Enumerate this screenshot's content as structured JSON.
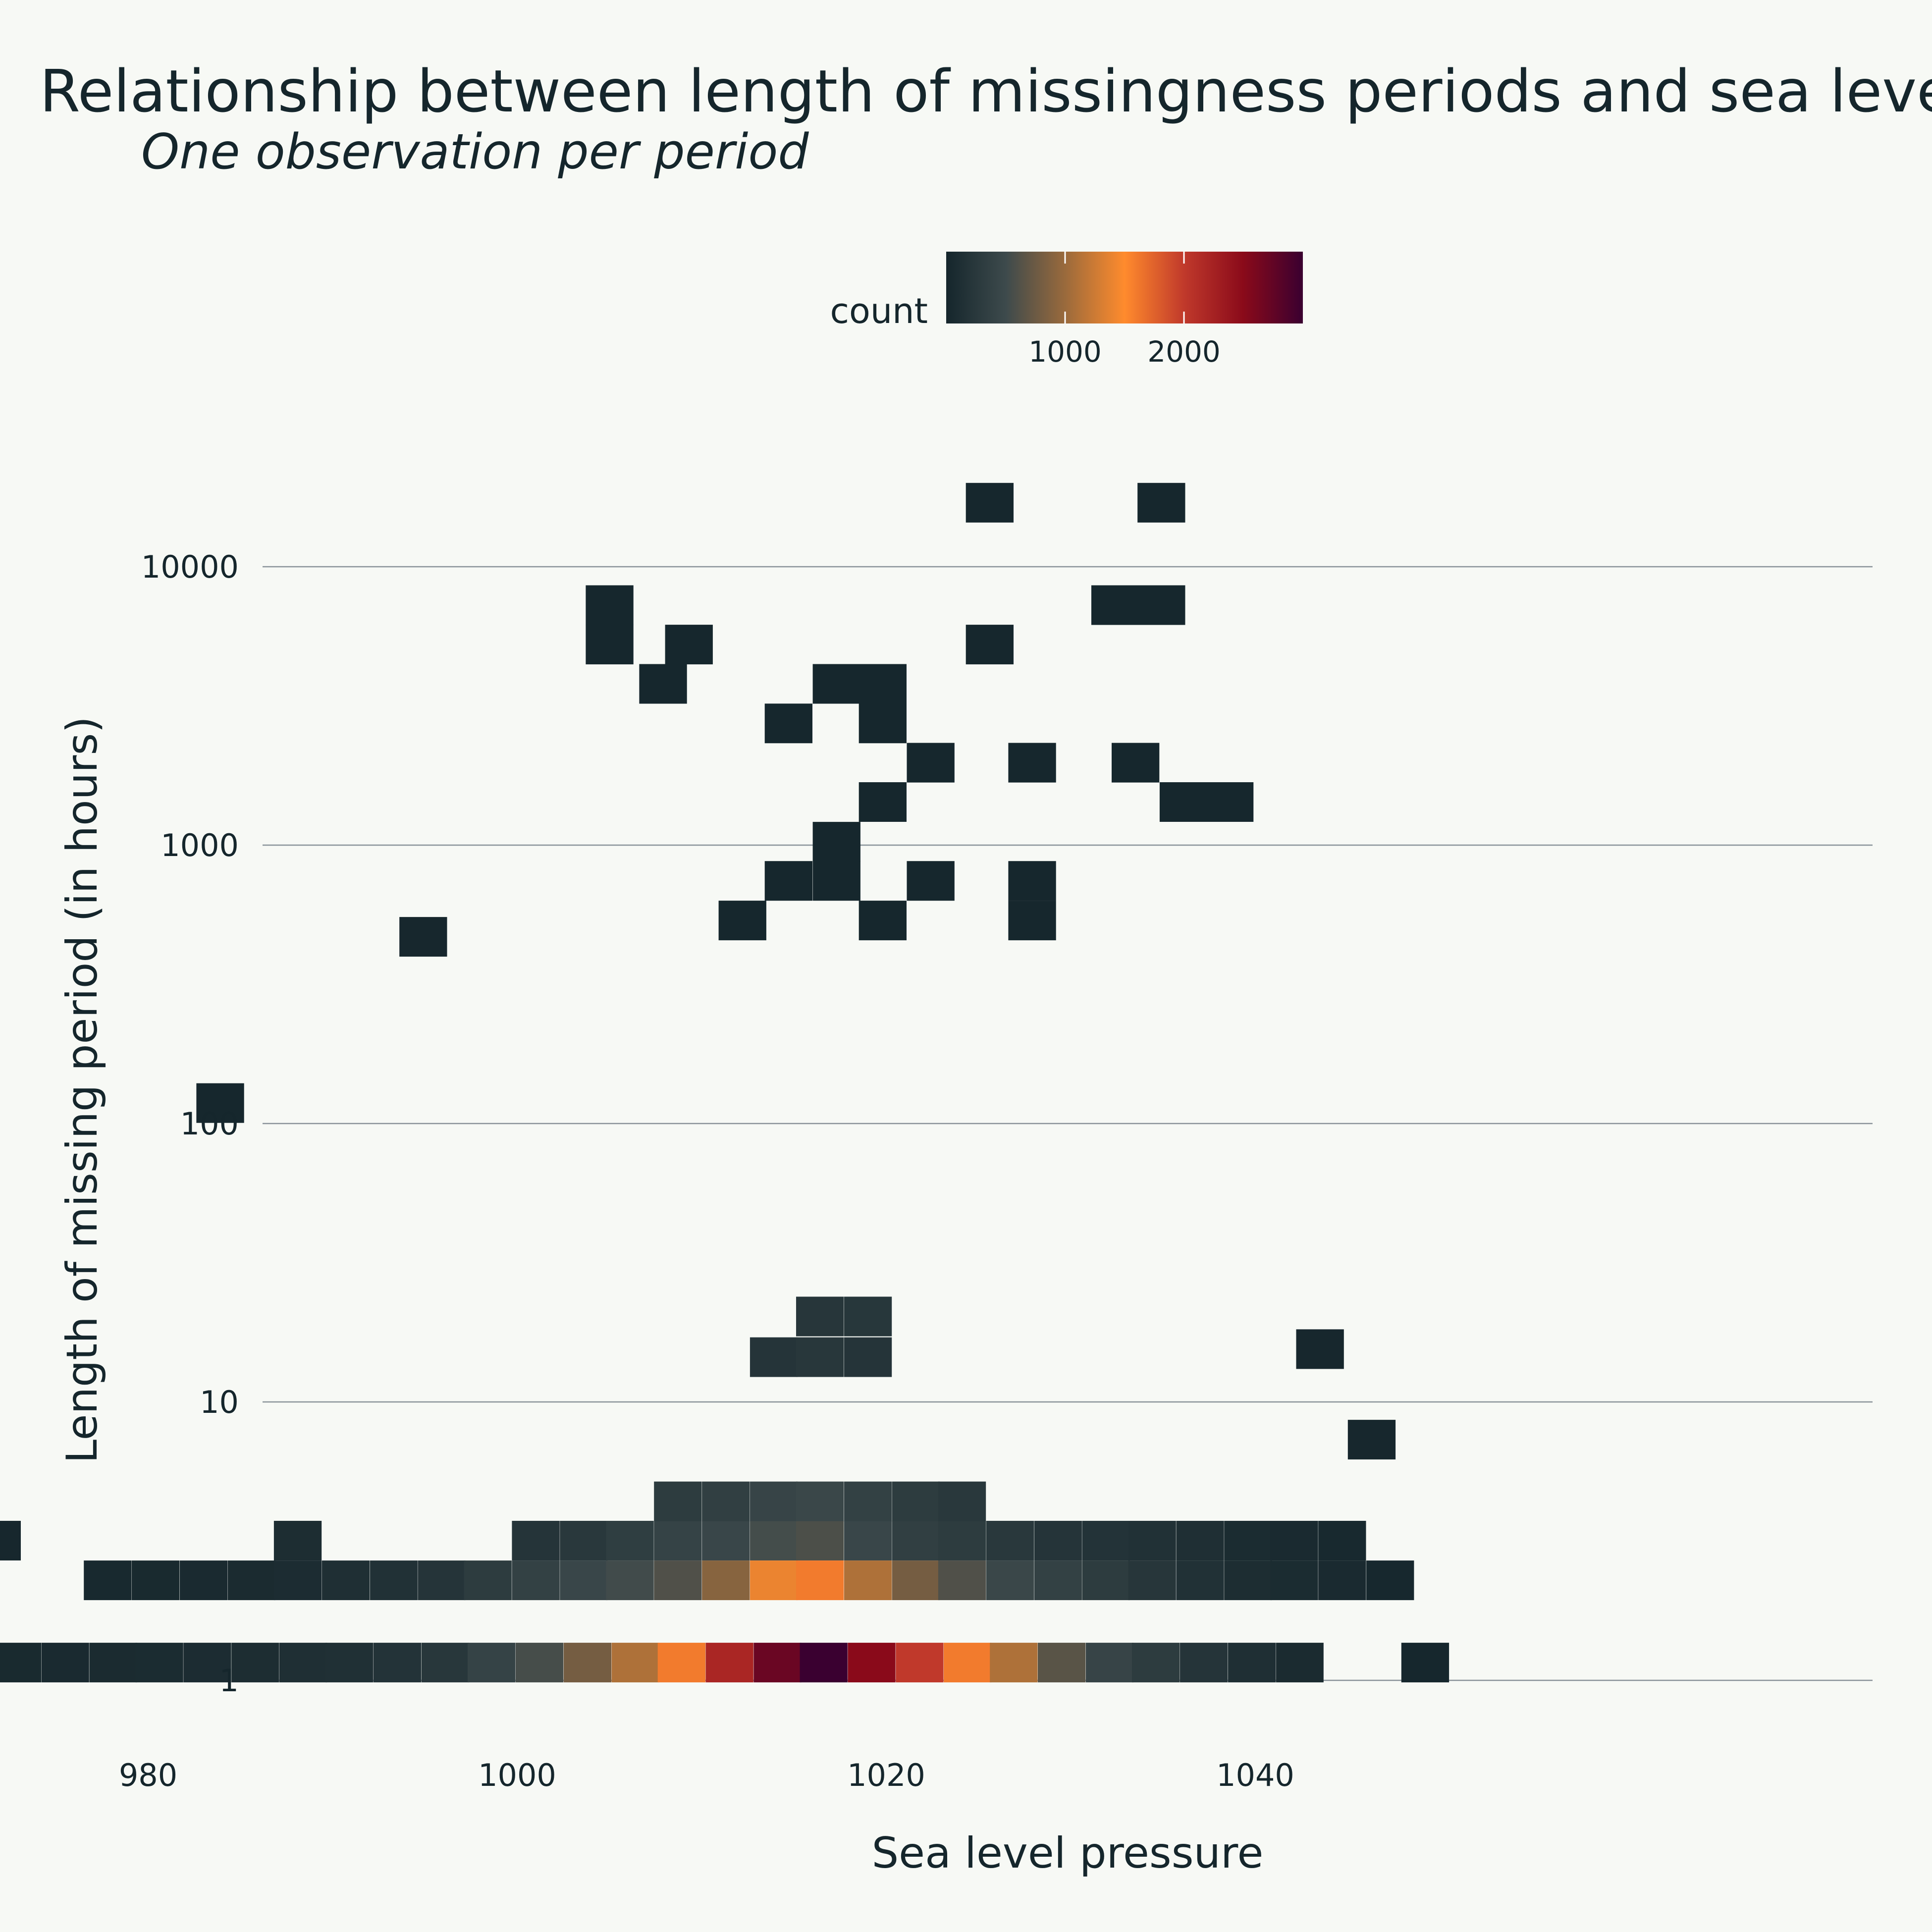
{
  "chart_data": {
    "type": "heatmap",
    "title": "Relationship between length of missingness periods and sea leve",
    "subtitle": "One observation per period",
    "xlabel": "Sea level pressure",
    "ylabel": "Length of missing period (in hours)",
    "xlim": [
      966,
      1054
    ],
    "ylim": [
      0.6,
      20000
    ],
    "y_scale": "log10",
    "x_ticks": [
      980,
      1000,
      1020,
      1040
    ],
    "y_ticks": [
      1,
      10,
      100,
      1000,
      10000
    ],
    "x_tick_labels": [
      "980",
      "1000",
      "1020",
      "1040"
    ],
    "y_tick_labels": [
      "1",
      "10",
      "100",
      "1000",
      "10000"
    ],
    "grid": "horizontal major lines",
    "legend": {
      "title": "count",
      "position": "top",
      "min": 0,
      "max": 3000,
      "ticks": [
        1000,
        2000
      ],
      "tick_labels": [
        "1000",
        "2000"
      ],
      "colors": [
        "#15262c",
        "#3d4a4c",
        "#9a6a3c",
        "#ff8b2d",
        "#c0392b",
        "#8a0a1a",
        "#3a0030"
      ]
    },
    "bin_width_x": 2.57,
    "bin_width_log10_y": 0.1412,
    "cells": [
      [
        970.3,
        1.16,
        50
      ],
      [
        972.9,
        1.16,
        50
      ],
      [
        975.5,
        1.16,
        60
      ],
      [
        978.1,
        1.16,
        70
      ],
      [
        980.6,
        1.16,
        80
      ],
      [
        983.2,
        1.16,
        90
      ],
      [
        985.8,
        1.16,
        100
      ],
      [
        988.4,
        1.16,
        120
      ],
      [
        990.9,
        1.16,
        140
      ],
      [
        993.5,
        1.16,
        180
      ],
      [
        996.1,
        1.16,
        240
      ],
      [
        998.6,
        1.16,
        400
      ],
      [
        1001.2,
        1.16,
        550
      ],
      [
        1003.8,
        1.16,
        800
      ],
      [
        1006.4,
        1.16,
        1100
      ],
      [
        1008.9,
        1.16,
        1600
      ],
      [
        1011.5,
        1.16,
        2200
      ],
      [
        1014.1,
        1.16,
        2700
      ],
      [
        1016.6,
        1.16,
        3000
      ],
      [
        1019.2,
        1.16,
        2500
      ],
      [
        1021.8,
        1.16,
        2000
      ],
      [
        1024.4,
        1.16,
        1600
      ],
      [
        1026.9,
        1.16,
        1100
      ],
      [
        1029.5,
        1.16,
        650
      ],
      [
        1032.1,
        1.16,
        420
      ],
      [
        1034.6,
        1.16,
        300
      ],
      [
        1037.2,
        1.16,
        200
      ],
      [
        1039.8,
        1.16,
        120
      ],
      [
        1042.4,
        1.16,
        70
      ],
      [
        1049.2,
        1.16,
        10
      ],
      [
        977.8,
        2.29,
        40
      ],
      [
        980.4,
        2.29,
        50
      ],
      [
        983.0,
        2.29,
        60
      ],
      [
        985.6,
        2.29,
        70
      ],
      [
        988.1,
        2.29,
        90
      ],
      [
        990.7,
        2.29,
        120
      ],
      [
        993.3,
        2.29,
        150
      ],
      [
        995.9,
        2.29,
        200
      ],
      [
        998.4,
        2.29,
        300
      ],
      [
        1001.0,
        2.29,
        380
      ],
      [
        1003.6,
        2.29,
        450
      ],
      [
        1006.1,
        2.29,
        520
      ],
      [
        1008.7,
        2.29,
        600
      ],
      [
        1011.3,
        2.29,
        900
      ],
      [
        1013.9,
        2.29,
        1400
      ],
      [
        1016.4,
        2.29,
        1600
      ],
      [
        1019.0,
        2.29,
        1100
      ],
      [
        1021.6,
        2.29,
        800
      ],
      [
        1024.1,
        2.29,
        600
      ],
      [
        1026.7,
        2.29,
        460
      ],
      [
        1029.3,
        2.29,
        380
      ],
      [
        1031.9,
        2.29,
        300
      ],
      [
        1034.4,
        2.29,
        220
      ],
      [
        1037.0,
        2.29,
        150
      ],
      [
        1039.6,
        2.29,
        100
      ],
      [
        1042.1,
        2.29,
        80
      ],
      [
        1044.7,
        2.29,
        60
      ],
      [
        1047.3,
        2.29,
        30
      ],
      [
        971.8,
        3.18,
        20
      ],
      [
        988.1,
        3.18,
        100
      ],
      [
        1001.0,
        3.18,
        200
      ],
      [
        1003.6,
        3.18,
        250
      ],
      [
        1006.1,
        3.18,
        330
      ],
      [
        1008.7,
        3.18,
        400
      ],
      [
        1011.3,
        3.18,
        450
      ],
      [
        1013.9,
        3.18,
        540
      ],
      [
        1016.4,
        3.18,
        580
      ],
      [
        1019.0,
        3.18,
        450
      ],
      [
        1021.6,
        3.18,
        350
      ],
      [
        1024.1,
        3.18,
        300
      ],
      [
        1026.7,
        3.18,
        250
      ],
      [
        1029.3,
        3.18,
        200
      ],
      [
        1031.9,
        3.18,
        180
      ],
      [
        1034.4,
        3.18,
        150
      ],
      [
        1037.0,
        3.18,
        120
      ],
      [
        1039.6,
        3.18,
        80
      ],
      [
        1042.1,
        3.18,
        60
      ],
      [
        1044.7,
        3.18,
        40
      ],
      [
        1008.7,
        4.4,
        300
      ],
      [
        1011.3,
        4.4,
        350
      ],
      [
        1013.9,
        4.4,
        420
      ],
      [
        1016.4,
        4.4,
        460
      ],
      [
        1019.0,
        4.4,
        380
      ],
      [
        1021.6,
        4.4,
        300
      ],
      [
        1024.1,
        4.4,
        250
      ],
      [
        1046.3,
        7.33,
        20
      ],
      [
        1013.9,
        14.5,
        200
      ],
      [
        1016.4,
        14.5,
        240
      ],
      [
        1019.0,
        14.5,
        200
      ],
      [
        1016.4,
        20.3,
        220
      ],
      [
        1019.0,
        20.3,
        230
      ],
      [
        1043.5,
        15.5,
        20
      ],
      [
        983.9,
        118.6,
        15
      ],
      [
        994.9,
        469.0,
        20
      ],
      [
        1025.6,
        17000,
        10
      ],
      [
        1034.9,
        17000,
        10
      ],
      [
        1005.0,
        7290,
        10
      ],
      [
        1005.0,
        5260,
        10
      ],
      [
        1009.3,
        5260,
        10
      ],
      [
        1025.6,
        5260,
        10
      ],
      [
        1032.4,
        7290,
        10
      ],
      [
        1034.9,
        7290,
        10
      ],
      [
        1007.9,
        3800,
        10
      ],
      [
        1014.7,
        2740,
        10
      ],
      [
        1017.3,
        3800,
        10
      ],
      [
        1019.8,
        3800,
        10
      ],
      [
        1019.8,
        2740,
        10
      ],
      [
        1022.4,
        1980,
        10
      ],
      [
        1027.9,
        1980,
        10
      ],
      [
        1033.5,
        1980,
        10
      ],
      [
        1036.1,
        1430,
        10
      ],
      [
        1038.6,
        1430,
        10
      ],
      [
        1019.8,
        1430,
        10
      ],
      [
        1017.3,
        1030,
        10
      ],
      [
        1014.7,
        745,
        10
      ],
      [
        1017.3,
        745,
        10
      ],
      [
        1022.4,
        745,
        10
      ],
      [
        1027.9,
        745,
        10
      ],
      [
        1027.9,
        537,
        10
      ],
      [
        1012.2,
        537,
        10
      ],
      [
        1019.8,
        537,
        10
      ]
    ]
  }
}
